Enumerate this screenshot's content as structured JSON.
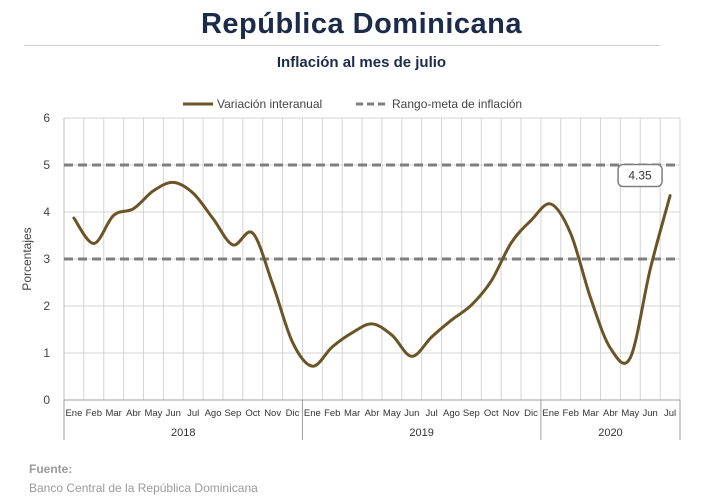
{
  "title": "República Dominicana",
  "subtitle": "Inflación al mes de julio",
  "source": {
    "label": "Fuente:",
    "text": "Banco Central de la República Dominicana"
  },
  "colors": {
    "series": "#6b5426",
    "target": "#7f7f7f",
    "title": "#1c2b4a",
    "callout_border": "#7f7f7f"
  },
  "chart_data": {
    "type": "line",
    "ylabel": "Porcentajes",
    "ylim": [
      0,
      6
    ],
    "yticks": [
      0,
      1,
      2,
      3,
      4,
      5,
      6
    ],
    "grid": true,
    "legend_position": "top-center",
    "months": [
      "Ene",
      "Feb",
      "Mar",
      "Abr",
      "May",
      "Jun",
      "Jul",
      "Ago",
      "Sep",
      "Oct",
      "Nov",
      "Dic",
      "Ene",
      "Feb",
      "Mar",
      "Abr",
      "May",
      "Jun",
      "Jul",
      "Ago",
      "Sep",
      "Oct",
      "Nov",
      "Dic",
      "Ene",
      "Feb",
      "Mar",
      "Abr",
      "May",
      "Jun",
      "Jul"
    ],
    "years": [
      {
        "label": "2018",
        "start": 0,
        "count": 12
      },
      {
        "label": "2019",
        "start": 12,
        "count": 12
      },
      {
        "label": "2020",
        "start": 24,
        "count": 7
      }
    ],
    "series": [
      {
        "name": "Variación interanual",
        "style": "solid",
        "values": [
          3.87,
          3.33,
          3.93,
          4.07,
          4.45,
          4.63,
          4.4,
          3.86,
          3.3,
          3.55,
          2.47,
          1.23,
          0.72,
          1.13,
          1.43,
          1.62,
          1.38,
          0.93,
          1.34,
          1.7,
          2.02,
          2.53,
          3.34,
          3.82,
          4.17,
          3.54,
          2.17,
          1.1,
          0.9,
          2.78,
          4.35
        ]
      },
      {
        "name": "Rango-meta de inflación",
        "style": "dashed",
        "values": [
          3,
          5
        ]
      }
    ],
    "annotations": [
      {
        "index": 30,
        "text": "4.35"
      }
    ]
  }
}
